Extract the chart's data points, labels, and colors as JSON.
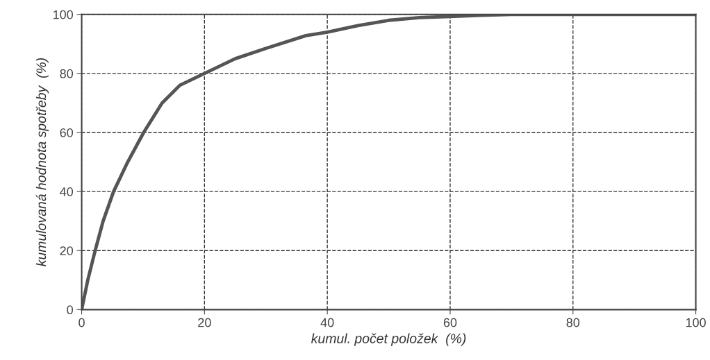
{
  "chart_data": {
    "type": "line",
    "xlabel": "kumul. počet položek  (%)",
    "ylabel": "kumulovaná hodnota spotřeby  (%)",
    "x": [
      0,
      1,
      2.2,
      3.5,
      5.2,
      7.5,
      10.1,
      13.1,
      16,
      20,
      25,
      30,
      36.5,
      40,
      45,
      50,
      55,
      60,
      65,
      70,
      80,
      90,
      100
    ],
    "series": [
      {
        "color": "#555555",
        "values": [
          0,
          10,
          20,
          30,
          40,
          50,
          60,
          70,
          76,
          80,
          85,
          88.5,
          92.8,
          94,
          96.2,
          98,
          98.9,
          99.3,
          99.7,
          100,
          100,
          100,
          100
        ]
      }
    ],
    "xlim": [
      0,
      100
    ],
    "ylim": [
      0,
      100
    ],
    "xticks": [
      0,
      20,
      40,
      60,
      80,
      100
    ],
    "yticks": [
      0,
      20,
      40,
      60,
      80,
      100
    ],
    "grid": true,
    "line_style": "solid",
    "marker": "none",
    "legend": false
  }
}
